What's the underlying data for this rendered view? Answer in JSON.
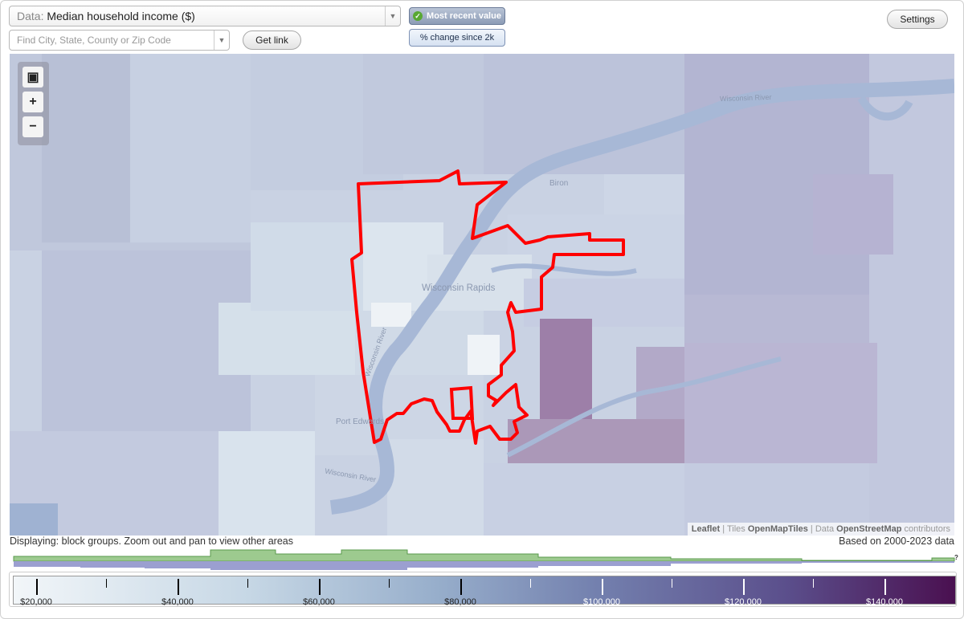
{
  "data_selector": {
    "prefix": "Data:",
    "value": "Median household income ($)"
  },
  "search": {
    "placeholder": "Find City, State, County or Zip Code"
  },
  "buttons": {
    "get_link": "Get link",
    "settings": "Settings"
  },
  "toggles": {
    "most_recent": "Most recent value",
    "pct_change": "% change since 2k"
  },
  "map": {
    "places": [
      {
        "name": "Wisconsin Rapids"
      },
      {
        "name": "Biron"
      },
      {
        "name": "Port Edwards"
      },
      {
        "name": "Wisconsin River"
      },
      {
        "name": "Wisconsin River"
      },
      {
        "name": "Wisconsin River"
      }
    ],
    "highlight_color": "#ff0000"
  },
  "attribution": {
    "leaflet": "Leaflet",
    "tiles": "Tiles",
    "tiles_src": "OpenMapTiles",
    "data": "Data",
    "data_src": "OpenStreetMap",
    "contributors": "contributors"
  },
  "footer": {
    "displaying": "Displaying: block groups. Zoom out and pan to view other areas",
    "based_on": "Based on 2000-2023 data",
    "help": "?"
  },
  "legend": {
    "labels": [
      "$20,000",
      "$40,000",
      "$60,000",
      "$80,000",
      "$100,000",
      "$120,000",
      "$140,000"
    ],
    "colors": {
      "low": "#f2f6f9",
      "mid": "#7380ae",
      "high": "#4a1050"
    }
  }
}
